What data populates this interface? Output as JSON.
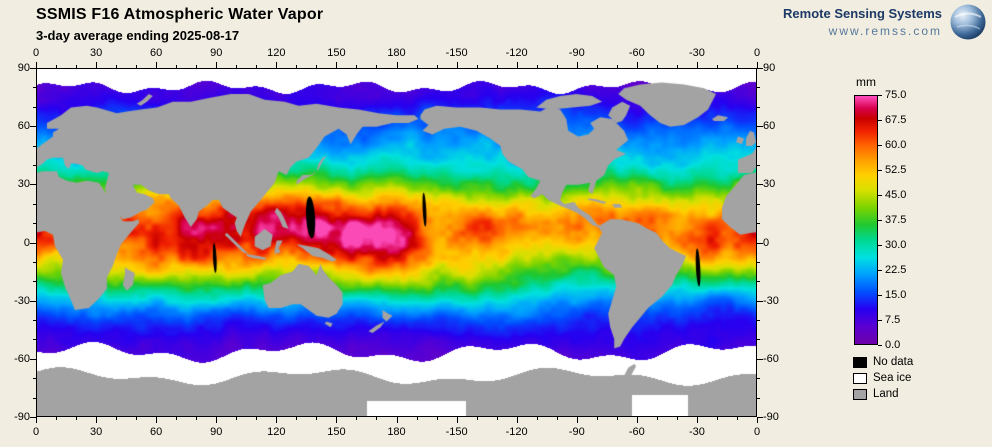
{
  "header": {
    "title": "SSMIS F16 Atmospheric Water Vapor",
    "subtitle": "3-day average ending 2025-08-17"
  },
  "logo": {
    "name": "Remote Sensing Systems",
    "url": "www.remss.com"
  },
  "map": {
    "lon_tick_labels": [
      "0",
      "30",
      "60",
      "90",
      "120",
      "150",
      "180",
      "-150",
      "-120",
      "-90",
      "-60",
      "-30",
      "0"
    ],
    "lat_tick_labels": [
      "90",
      "60",
      "30",
      "0",
      "-30",
      "-60",
      "-90"
    ]
  },
  "colorbar": {
    "unit": "mm",
    "min": 0,
    "max": 75,
    "tick_labels": [
      "75.0",
      "67.5",
      "60.0",
      "52.5",
      "45.0",
      "37.5",
      "30.0",
      "22.5",
      "15.0",
      "7.5",
      "0.0"
    ],
    "stops": [
      [
        0.0,
        "#6e00a8"
      ],
      [
        0.07,
        "#5a00d2"
      ],
      [
        0.14,
        "#2800f0"
      ],
      [
        0.21,
        "#0050ff"
      ],
      [
        0.28,
        "#00a0ff"
      ],
      [
        0.35,
        "#00e0e0"
      ],
      [
        0.42,
        "#00d890"
      ],
      [
        0.48,
        "#20c830"
      ],
      [
        0.55,
        "#7cd400"
      ],
      [
        0.62,
        "#d8e000"
      ],
      [
        0.68,
        "#ffd000"
      ],
      [
        0.74,
        "#ffa000"
      ],
      [
        0.8,
        "#ff6400"
      ],
      [
        0.86,
        "#f02000"
      ],
      [
        0.91,
        "#c80000"
      ],
      [
        0.95,
        "#d8004c"
      ],
      [
        1.0,
        "#ff50c0"
      ]
    ]
  },
  "legend": {
    "items": [
      {
        "label": "No data",
        "color": "#000000"
      },
      {
        "label": "Sea ice",
        "color": "#ffffff"
      },
      {
        "label": "Land",
        "color": "#a3a3a3"
      }
    ]
  },
  "colors": {
    "background": "#f1ede0",
    "land": "#a3a3a3",
    "sea_ice": "#ffffff",
    "no_data": "#000000"
  }
}
